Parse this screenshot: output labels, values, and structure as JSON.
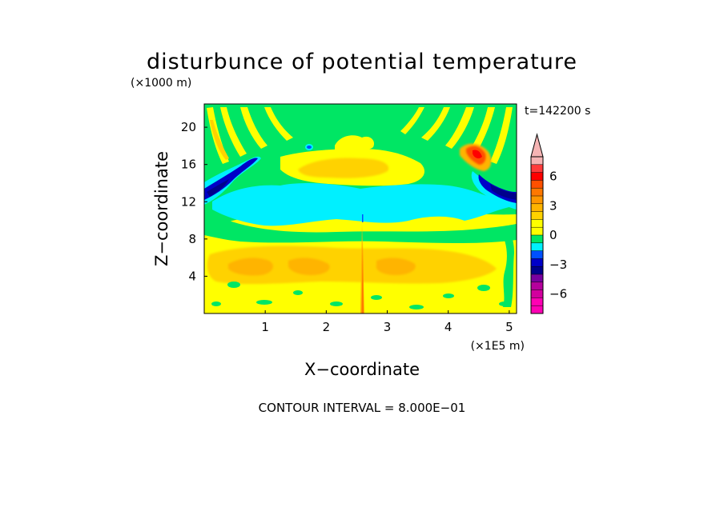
{
  "chart_data": {
    "type": "heatmap",
    "title": "disturbunce of potential temperature",
    "time_label": "t=142200 s",
    "xlabel": "X−coordinate",
    "ylabel": "Z−coordinate",
    "x_multiplier": "(×1E5 m)",
    "y_multiplier": "(×1000 m)",
    "x_unit_scale": 100000,
    "y_unit_scale": 1000,
    "xlim": [
      0,
      5.12
    ],
    "ylim": [
      0,
      22.5
    ],
    "x_ticks": [
      1,
      2,
      3,
      4,
      5
    ],
    "y_ticks": [
      4,
      8,
      12,
      16,
      20
    ],
    "x_tick_labels": [
      "1",
      "2",
      "3",
      "4",
      "5"
    ],
    "y_tick_labels": [
      "4",
      "8",
      "12",
      "16",
      "20"
    ],
    "contour_interval_label": "CONTOUR INTERVAL = 8.000E−01",
    "contour_interval": 0.8,
    "colorbar": {
      "levels": [
        -8.0,
        -7.2,
        -6.4,
        -5.6,
        -4.8,
        -4.0,
        -3.2,
        -2.4,
        -1.6,
        -0.8,
        0.0,
        0.8,
        1.6,
        2.4,
        3.2,
        4.0,
        4.8,
        5.6,
        6.4,
        7.2,
        8.0
      ],
      "band_colors": [
        "#ff00b4",
        "#ff00b4",
        "#d2009e",
        "#b4009c",
        "#7800a0",
        "#00008c",
        "#0000c8",
        "#0050ff",
        "#00f0ff",
        "#00e664",
        "#ffff00",
        "#ffff00",
        "#ffd200",
        "#ffb400",
        "#ff9600",
        "#ff7800",
        "#ff5000",
        "#ff0000",
        "#ff3c3c",
        "#f5b4b4"
      ],
      "overflow_color": "#f5b4b4",
      "tick_values": [
        6,
        3,
        0,
        -3,
        -6
      ],
      "tick_labels": [
        "6",
        "3",
        "0",
        "−3",
        "−6"
      ]
    },
    "fill_regions": [
      {
        "name": "background",
        "color": "#ffff00"
      },
      {
        "name": "upper-layer",
        "color": "#00e664",
        "z": [
          10,
          22.5
        ]
      },
      {
        "name": "cold-band",
        "color": "#00f0ff",
        "z": [
          10.5,
          14
        ]
      },
      {
        "name": "warm-blob-upper",
        "color": "#ffd200",
        "x": [
          1.5,
          2.9
        ],
        "z": [
          14.5,
          17.5
        ]
      },
      {
        "name": "warm-band-lower",
        "color": "#ffd200",
        "z": [
          3,
          8
        ]
      },
      {
        "name": "cold-left-wave",
        "color": "#00008c",
        "x": [
          0,
          1.0
        ],
        "z": [
          13,
          17
        ]
      },
      {
        "name": "cold-right-wave",
        "color": "#00008c",
        "x": [
          4.5,
          5.12
        ],
        "z": [
          12.5,
          15
        ]
      },
      {
        "name": "warm-right-peak",
        "color": "#ff0000",
        "x": [
          4.3,
          4.6
        ],
        "z": [
          16.5,
          18.5
        ]
      }
    ]
  }
}
